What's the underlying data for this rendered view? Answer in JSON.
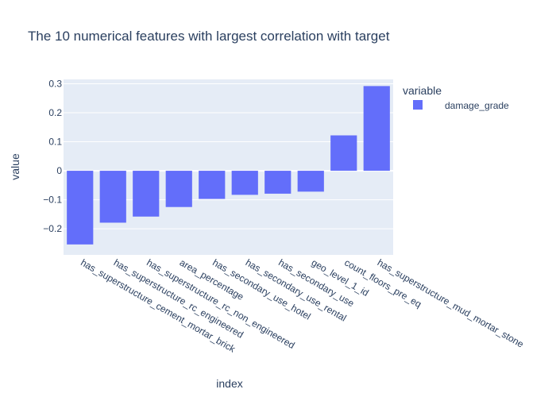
{
  "chart_data": {
    "type": "bar",
    "title": "The 10 numerical features with largest correlation with target",
    "xlabel": "index",
    "ylabel": "value",
    "categories": [
      "has_superstructure_cement_mortar_brick",
      "has_superstructure_rc_engineered",
      "has_superstructure_rc_non_engineered",
      "area_percentage",
      "has_secondary_use_hotel",
      "has_secondary_use_rental",
      "has_secondary_use",
      "geo_level_1_id",
      "count_floors_pre_eq",
      "has_superstructure_mud_mortar_stone"
    ],
    "series": [
      {
        "name": "damage_grade",
        "color": "#636efa",
        "values": [
          -0.254,
          -0.179,
          -0.158,
          -0.125,
          -0.097,
          -0.083,
          -0.079,
          -0.072,
          0.122,
          0.292
        ]
      }
    ],
    "ylim": [
      -0.29,
      0.315
    ],
    "yticks": [
      -0.2,
      -0.1,
      0,
      0.1,
      0.2,
      0.3
    ],
    "ytick_labels": [
      "−0.2",
      "−0.1",
      "0",
      "0.1",
      "0.2",
      "0.3"
    ],
    "legend": {
      "title": "variable",
      "position": "right"
    },
    "grid": true,
    "plot_bg": "#e5ecf6"
  }
}
